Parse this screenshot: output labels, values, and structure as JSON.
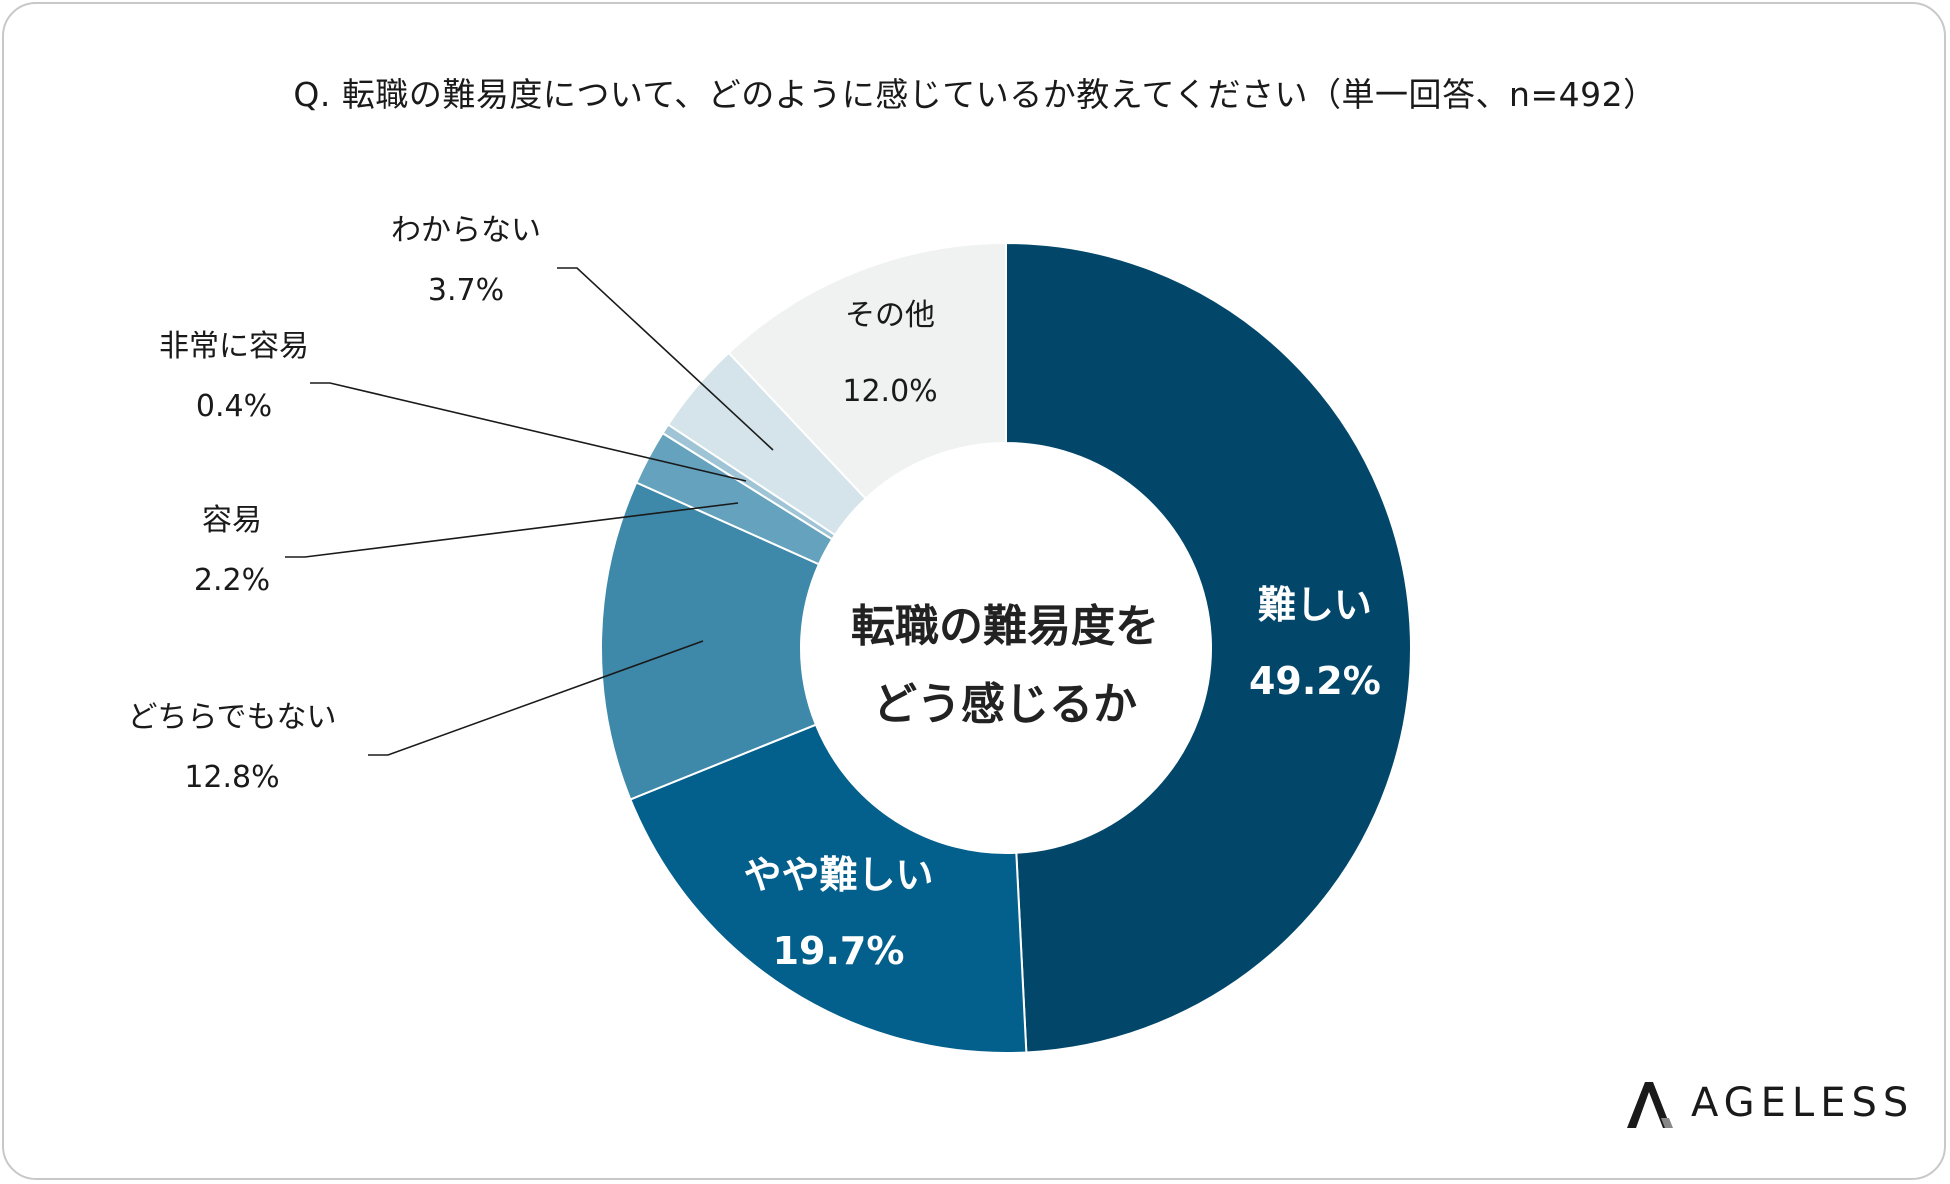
{
  "title": "Q. 転職の難易度について、どのように感じているか教えてください（単一回答、n=492）",
  "center_label": {
    "line1": "転職の難易度を",
    "line2": "どう感じるか"
  },
  "brand": {
    "name": "AGELESS",
    "logo_icon": "ageless-logo-icon"
  },
  "chart_data": {
    "type": "pie",
    "donut": true,
    "title": "Q. 転職の難易度について、どのように感じているか教えてください（単一回答、n=492）",
    "slices": [
      {
        "label": "難しい",
        "value": 49.2,
        "display": "49.2%",
        "color": "#02476a"
      },
      {
        "label": "やや難しい",
        "value": 19.7,
        "display": "19.7%",
        "color": "#035f8c"
      },
      {
        "label": "どちらでもない",
        "value": 12.8,
        "display": "12.8%",
        "color": "#3e88a9"
      },
      {
        "label": "容易",
        "value": 2.2,
        "display": "2.2%",
        "color": "#64a2bd"
      },
      {
        "label": "非常に容易",
        "value": 0.4,
        "display": "0.4%",
        "color": "#9ec4d5"
      },
      {
        "label": "わからない",
        "value": 3.7,
        "display": "3.7%",
        "color": "#d4e4ea"
      },
      {
        "label": "その他",
        "value": 12.0,
        "display": "12.0%",
        "color": "#f0f1f1"
      }
    ]
  }
}
